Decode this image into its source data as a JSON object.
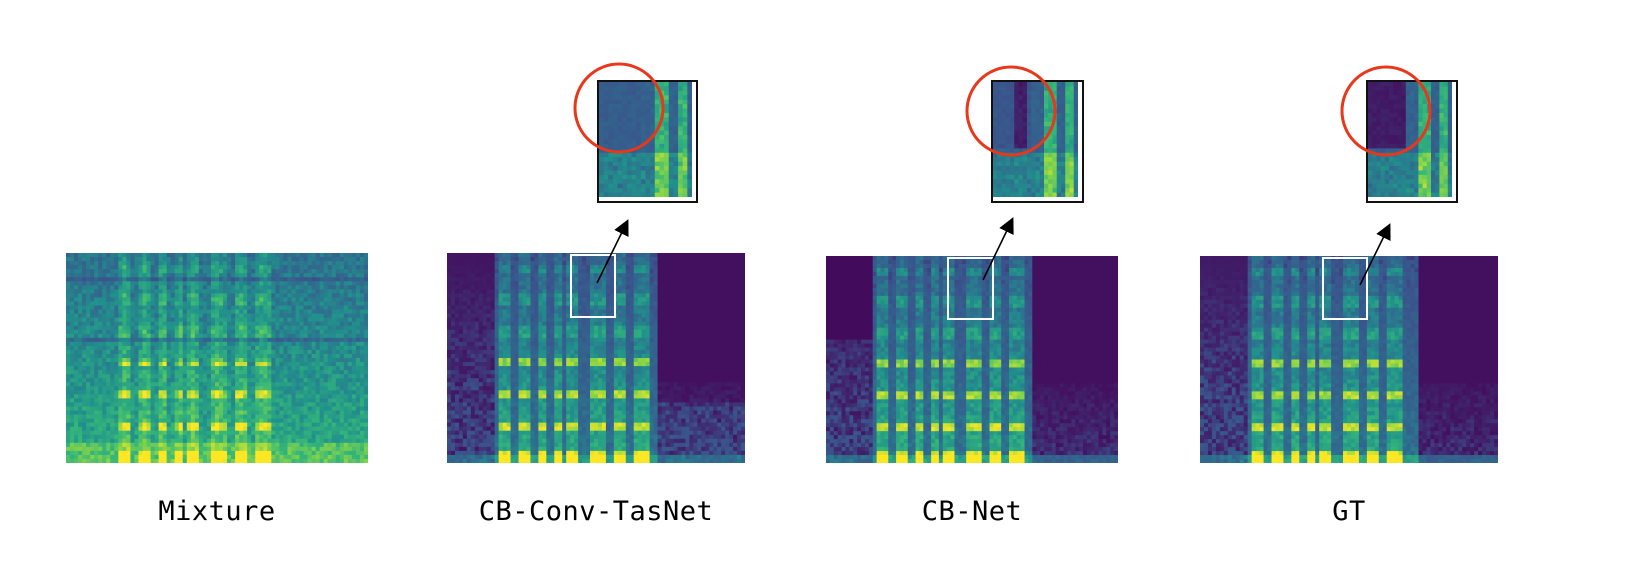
{
  "panels": [
    {
      "id": "mixture",
      "label": "Mixture",
      "has_zoom": false
    },
    {
      "id": "cb-conv-tasnet",
      "label": "CB-Conv-TasNet",
      "has_zoom": true
    },
    {
      "id": "cb-net",
      "label": "CB-Net",
      "has_zoom": true
    },
    {
      "id": "gt",
      "label": "GT",
      "has_zoom": true
    }
  ],
  "colors": {
    "background_dark": "#440154",
    "mid_blue": "#31688e",
    "teal": "#21918c",
    "green": "#35b779",
    "yellow": "#fde725",
    "highlight_circle": "#e8371a",
    "selection_box": "#ffffff",
    "arrow": "#000000"
  },
  "colormap": "viridis"
}
